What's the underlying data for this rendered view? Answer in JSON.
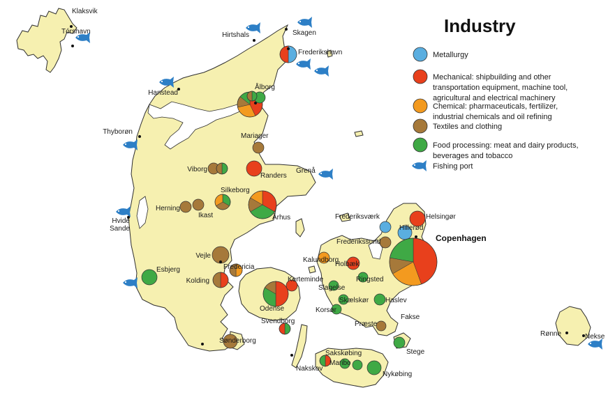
{
  "title": "Industry",
  "colors": {
    "metallurgy": "#5aaee0",
    "mechanical": "#e8401c",
    "chemical": "#f39a1f",
    "textiles": "#a6793a",
    "food": "#3fa945",
    "fish": "#2d7fc6",
    "land": "#f6f0b0",
    "coast": "#2f2f2f",
    "water": "#ffffff"
  },
  "legend": [
    {
      "key": "metallurgy",
      "lines": [
        "Metallurgy"
      ]
    },
    {
      "key": "mechanical",
      "lines": [
        "Mechanical: shipbuilding and other",
        "  transportation  equipment, machine tool,",
        "  agricultural and electrical machinery"
      ]
    },
    {
      "key": "chemical",
      "lines": [
        "Chemical: pharmaceuticals, fertilizer,",
        "industrial chemicals and oil refining"
      ]
    },
    {
      "key": "textiles",
      "lines": [
        "Textiles and clothing"
      ]
    },
    {
      "key": "food",
      "lines": [
        "Food processing: meat and dairy products,",
        "  beverages and tobacco"
      ]
    },
    {
      "key": "fish",
      "lines": [
        "Fishing port"
      ]
    }
  ],
  "places": [
    {
      "id": "klaksvik",
      "name": "Klaksvik"
    },
    {
      "id": "torshavn",
      "name": "Tórshavn"
    },
    {
      "id": "hirtshals",
      "name": "Hirtshals"
    },
    {
      "id": "skagen",
      "name": "Skagen"
    },
    {
      "id": "frederikshavn",
      "name": "Frederikshavn"
    },
    {
      "id": "hanstead",
      "name": "Hanstead"
    },
    {
      "id": "alborg",
      "name": "Ålborg"
    },
    {
      "id": "thyboron",
      "name": "Thyborøn"
    },
    {
      "id": "mariager",
      "name": "Mariager"
    },
    {
      "id": "viborg",
      "name": "Viborg"
    },
    {
      "id": "randers",
      "name": "Randers"
    },
    {
      "id": "grena",
      "name": "Grenå"
    },
    {
      "id": "silkeborg",
      "name": "Silkeborg"
    },
    {
      "id": "herning",
      "name": "Herning"
    },
    {
      "id": "ikast",
      "name": "Ikast"
    },
    {
      "id": "arhus",
      "name": "Århus"
    },
    {
      "id": "hvide_sande",
      "name": "Hvide\nSande"
    },
    {
      "id": "vejle",
      "name": "Vejle"
    },
    {
      "id": "fredericia",
      "name": "Fredericia"
    },
    {
      "id": "esbjerg",
      "name": "Esbjerg"
    },
    {
      "id": "kolding",
      "name": "Kolding"
    },
    {
      "id": "kerteminde",
      "name": "Kerteminde"
    },
    {
      "id": "odense",
      "name": "Odense"
    },
    {
      "id": "svendborg",
      "name": "Svendborg"
    },
    {
      "id": "sonderborg",
      "name": "Sønderborg"
    },
    {
      "id": "frederiksvaerk",
      "name": "Frederiksværk"
    },
    {
      "id": "helsingor",
      "name": "Helsingør"
    },
    {
      "id": "hillerod",
      "name": "Hillerød"
    },
    {
      "id": "frederikssund",
      "name": "Frederikssund"
    },
    {
      "id": "copenhagen",
      "name": "Copenhagen"
    },
    {
      "id": "kalundborg",
      "name": "Kalundborg"
    },
    {
      "id": "holbaek",
      "name": "Holbæk"
    },
    {
      "id": "ringsted",
      "name": "Ringsted"
    },
    {
      "id": "slagelse",
      "name": "Slagelse"
    },
    {
      "id": "skaelskor",
      "name": "Skælskør"
    },
    {
      "id": "korsor",
      "name": "Korsør"
    },
    {
      "id": "haslev",
      "name": "Haslev"
    },
    {
      "id": "praeste",
      "name": "Præste"
    },
    {
      "id": "fakse",
      "name": "Fakse"
    },
    {
      "id": "stege",
      "name": "Stege"
    },
    {
      "id": "sakskobing",
      "name": "Sakskøbing"
    },
    {
      "id": "maribo",
      "name": "Maribo"
    },
    {
      "id": "nakskov",
      "name": "Nakskov"
    },
    {
      "id": "nykobing",
      "name": "Nykøbing"
    },
    {
      "id": "ronne",
      "name": "Rønne"
    },
    {
      "id": "nekso",
      "name": "Nekse"
    }
  ]
}
